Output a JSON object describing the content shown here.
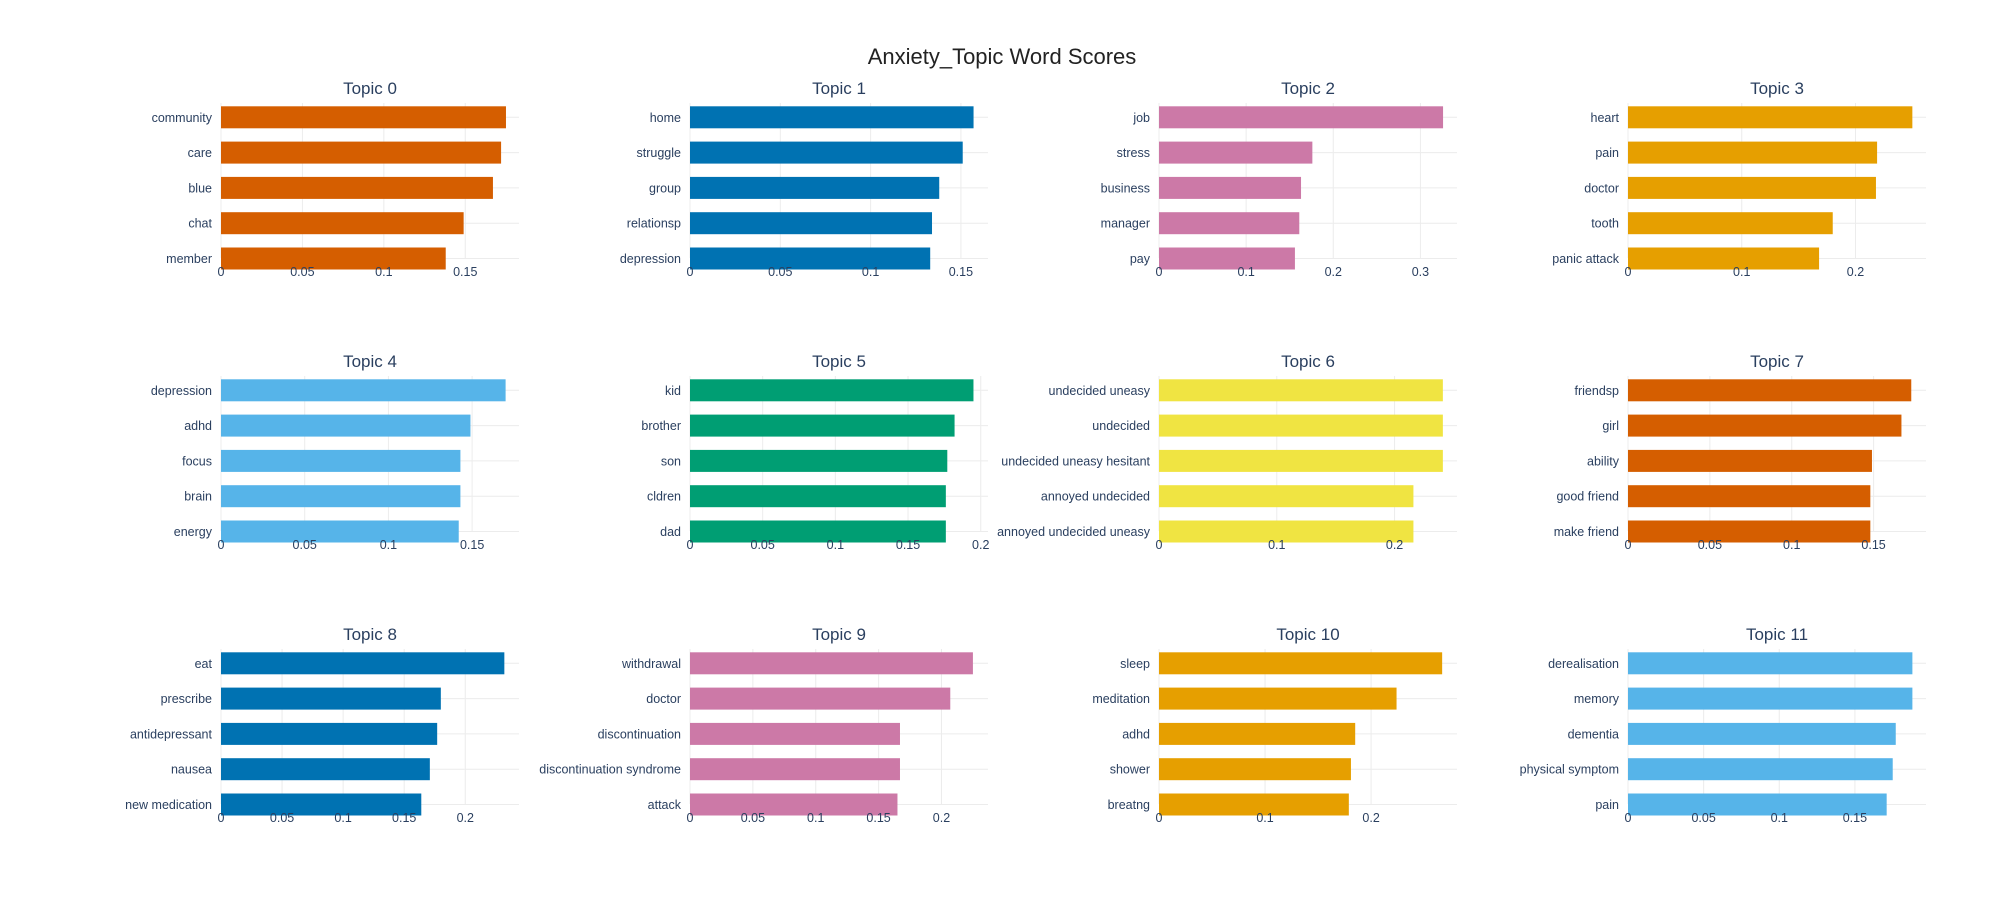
{
  "title": "Anxiety_Topic Word Scores",
  "chart_data": [
    {
      "type": "bar",
      "orientation": "horizontal",
      "title": "Topic 0",
      "color": "#D55E00",
      "categories": [
        "community",
        "care",
        "blue",
        "chat",
        "member"
      ],
      "values": [
        0.175,
        0.172,
        0.167,
        0.149,
        0.138
      ],
      "xlim": [
        0,
        0.183
      ],
      "xticks": [
        0,
        0.05,
        0.1,
        0.15
      ],
      "xtick_labels": [
        "0",
        "0.05",
        "0.1",
        "0.15"
      ]
    },
    {
      "type": "bar",
      "orientation": "horizontal",
      "title": "Topic 1",
      "color": "#0072B2",
      "categories": [
        "home",
        "struggle",
        "group",
        "relationsp",
        "depression"
      ],
      "values": [
        0.157,
        0.151,
        0.138,
        0.134,
        0.133
      ],
      "xlim": [
        0,
        0.165
      ],
      "xticks": [
        0,
        0.05,
        0.1,
        0.15
      ],
      "xtick_labels": [
        "0",
        "0.05",
        "0.1",
        "0.15"
      ]
    },
    {
      "type": "bar",
      "orientation": "horizontal",
      "title": "Topic 2",
      "color": "#CC79A7",
      "categories": [
        "job",
        "stress",
        "business",
        "manager",
        "pay"
      ],
      "values": [
        0.326,
        0.176,
        0.163,
        0.161,
        0.156
      ],
      "xlim": [
        0,
        0.342
      ],
      "xticks": [
        0,
        0.1,
        0.2,
        0.3
      ],
      "xtick_labels": [
        "0",
        "0.1",
        "0.2",
        "0.3"
      ]
    },
    {
      "type": "bar",
      "orientation": "horizontal",
      "title": "Topic 3",
      "color": "#E69F00",
      "categories": [
        "heart",
        "pain",
        "doctor",
        "tooth",
        "panic attack"
      ],
      "values": [
        0.25,
        0.219,
        0.218,
        0.18,
        0.168
      ],
      "xlim": [
        0,
        0.262
      ],
      "xticks": [
        0,
        0.1,
        0.2
      ],
      "xtick_labels": [
        "0",
        "0.1",
        "0.2"
      ]
    },
    {
      "type": "bar",
      "orientation": "horizontal",
      "title": "Topic 4",
      "color": "#56B4E9",
      "categories": [
        "depression",
        "adhd",
        "focus",
        "brain",
        "energy"
      ],
      "values": [
        0.17,
        0.149,
        0.143,
        0.143,
        0.142
      ],
      "xlim": [
        0,
        0.178
      ],
      "xticks": [
        0,
        0.05,
        0.1,
        0.15
      ],
      "xtick_labels": [
        "0",
        "0.05",
        "0.1",
        "0.15"
      ]
    },
    {
      "type": "bar",
      "orientation": "horizontal",
      "title": "Topic 5",
      "color": "#009E73",
      "categories": [
        "kid",
        "brother",
        "son",
        "cldren",
        "dad"
      ],
      "values": [
        0.195,
        0.182,
        0.177,
        0.176,
        0.176
      ],
      "xlim": [
        0,
        0.205
      ],
      "xticks": [
        0,
        0.05,
        0.1,
        0.15,
        0.2
      ],
      "xtick_labels": [
        "0",
        "0.05",
        "0.1",
        "0.15",
        "0.2"
      ]
    },
    {
      "type": "bar",
      "orientation": "horizontal",
      "title": "Topic 6",
      "color": "#F0E442",
      "categories": [
        "undecided uneasy",
        "undecided",
        "undecided uneasy hesitant",
        "annoyed undecided",
        "annoyed undecided uneasy"
      ],
      "values": [
        0.241,
        0.241,
        0.241,
        0.216,
        0.216
      ],
      "xlim": [
        0,
        0.253
      ],
      "xticks": [
        0,
        0.1,
        0.2
      ],
      "xtick_labels": [
        "0",
        "0.1",
        "0.2"
      ]
    },
    {
      "type": "bar",
      "orientation": "horizontal",
      "title": "Topic 7",
      "color": "#D55E00",
      "categories": [
        "friendsp",
        "girl",
        "ability",
        "good friend",
        "make friend"
      ],
      "values": [
        0.173,
        0.167,
        0.149,
        0.148,
        0.148
      ],
      "xlim": [
        0,
        0.182
      ],
      "xticks": [
        0,
        0.05,
        0.1,
        0.15
      ],
      "xtick_labels": [
        "0",
        "0.05",
        "0.1",
        "0.15"
      ]
    },
    {
      "type": "bar",
      "orientation": "horizontal",
      "title": "Topic 8",
      "color": "#0072B2",
      "categories": [
        "eat",
        "prescribe",
        "antidepressant",
        "nausea",
        "new medication"
      ],
      "values": [
        0.232,
        0.18,
        0.177,
        0.171,
        0.164
      ],
      "xlim": [
        0,
        0.244
      ],
      "xticks": [
        0,
        0.05,
        0.1,
        0.15,
        0.2
      ],
      "xtick_labels": [
        "0",
        "0.05",
        "0.1",
        "0.15",
        "0.2"
      ]
    },
    {
      "type": "bar",
      "orientation": "horizontal",
      "title": "Topic 9",
      "color": "#CC79A7",
      "categories": [
        "withdrawal",
        "doctor",
        "discontinuation",
        "discontinuation syndrome",
        "attack"
      ],
      "values": [
        0.225,
        0.207,
        0.167,
        0.167,
        0.165
      ],
      "xlim": [
        0,
        0.237
      ],
      "xticks": [
        0,
        0.05,
        0.1,
        0.15,
        0.2
      ],
      "xtick_labels": [
        "0",
        "0.05",
        "0.1",
        "0.15",
        "0.2"
      ]
    },
    {
      "type": "bar",
      "orientation": "horizontal",
      "title": "Topic 10",
      "color": "#E69F00",
      "categories": [
        "sleep",
        "meditation",
        "adhd",
        "shower",
        "breatng"
      ],
      "values": [
        0.267,
        0.224,
        0.185,
        0.181,
        0.179
      ],
      "xlim": [
        0,
        0.281
      ],
      "xticks": [
        0,
        0.1,
        0.2
      ],
      "xtick_labels": [
        "0",
        "0.1",
        "0.2"
      ]
    },
    {
      "type": "bar",
      "orientation": "horizontal",
      "title": "Topic 11",
      "color": "#56B4E9",
      "categories": [
        "derealisation",
        "memory",
        "dementia",
        "physical symptom",
        "pain"
      ],
      "values": [
        0.188,
        0.188,
        0.177,
        0.175,
        0.171
      ],
      "xlim": [
        0,
        0.197
      ],
      "xticks": [
        0,
        0.05,
        0.1,
        0.15
      ],
      "xtick_labels": [
        "0",
        "0.05",
        "0.1",
        "0.15"
      ]
    }
  ]
}
